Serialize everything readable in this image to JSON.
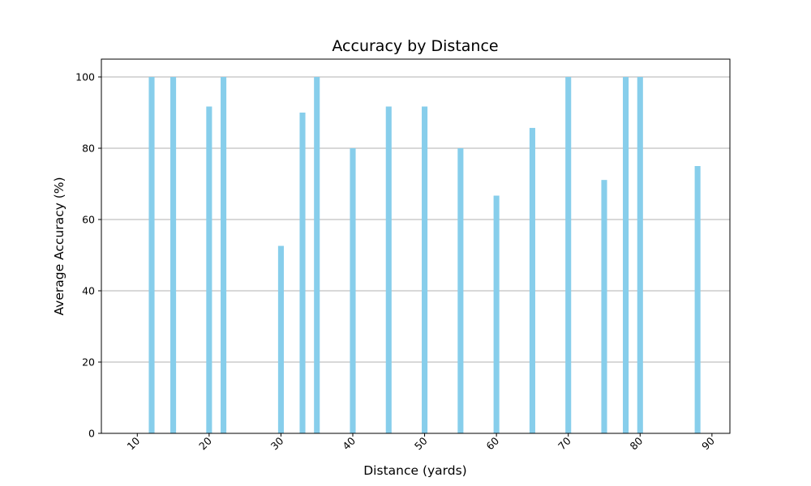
{
  "chart_data": {
    "type": "bar",
    "title": "Accuracy by Distance",
    "xlabel": "Distance (yards)",
    "ylabel": "Average Accuracy (%)",
    "x": [
      12,
      15,
      20,
      22,
      30,
      33,
      35,
      40,
      45,
      50,
      55,
      60,
      65,
      70,
      75,
      78,
      80,
      88
    ],
    "values": [
      100,
      100,
      91.7,
      100,
      52.6,
      90,
      100,
      80,
      91.7,
      91.7,
      80,
      66.7,
      85.7,
      100,
      71.1,
      100,
      100,
      75
    ],
    "xlim": [
      5,
      92.5
    ],
    "ylim": [
      0,
      105
    ],
    "xticks": [
      10,
      20,
      30,
      40,
      50,
      60,
      70,
      80,
      90
    ],
    "yticks": [
      0,
      20,
      40,
      60,
      80,
      100
    ],
    "xtick_rotation": 45,
    "bar_color": "#87CEEB",
    "grid": "y-axis only"
  }
}
